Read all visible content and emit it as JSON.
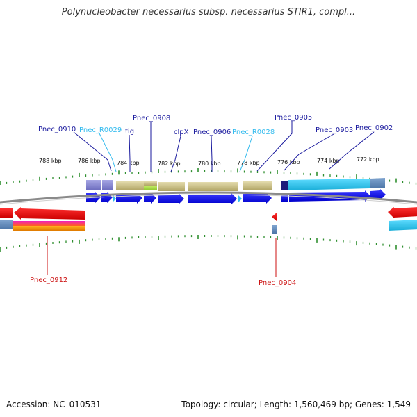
{
  "title": "Polynucleobacter necessarius subsp. necessarius STIR1, compl...",
  "footer": {
    "accession_label": "Accession:",
    "accession": "NC_010531",
    "topology_label": "Topology:",
    "topology": "circular;",
    "length_label": "Length:",
    "length": "1,560,469 bp;",
    "genes_label": "Genes:",
    "genes": "1,549"
  },
  "colors": {
    "forward_cds": "#0000ee",
    "reverse_cds": "#ee0000",
    "label_blue": "#1a1a9e",
    "label_cyan": "#33bbee",
    "label_red": "#cc1111",
    "tick_green": "#2f8f2f",
    "backbone": "#8a8a8a"
  },
  "scale_ticks": [
    {
      "label": "788 kbp"
    },
    {
      "label": "786 kbp"
    },
    {
      "label": "784 kbp"
    },
    {
      "label": "782 kbp"
    },
    {
      "label": "780 kbp"
    },
    {
      "label": "778 kbp"
    },
    {
      "label": "776 kbp"
    },
    {
      "label": "774 kbp"
    },
    {
      "label": "772 kbp"
    }
  ],
  "labels_top": [
    {
      "text": "Pnec_0910",
      "type": "cds"
    },
    {
      "text": "Pnec_R0029",
      "type": "rna"
    },
    {
      "text": "tig",
      "type": "cds"
    },
    {
      "text": "Pnec_0908",
      "type": "cds"
    },
    {
      "text": "clpX",
      "type": "cds"
    },
    {
      "text": "Pnec_0906",
      "type": "cds"
    },
    {
      "text": "Pnec_R0028",
      "type": "rna"
    },
    {
      "text": "Pnec_0905",
      "type": "cds"
    },
    {
      "text": "Pnec_0903",
      "type": "cds"
    },
    {
      "text": "Pnec_0902",
      "type": "cds"
    }
  ],
  "labels_bottom": [
    {
      "text": "Pnec_0912",
      "type": "cds"
    },
    {
      "text": "Pnec_0904",
      "type": "cds"
    }
  ]
}
